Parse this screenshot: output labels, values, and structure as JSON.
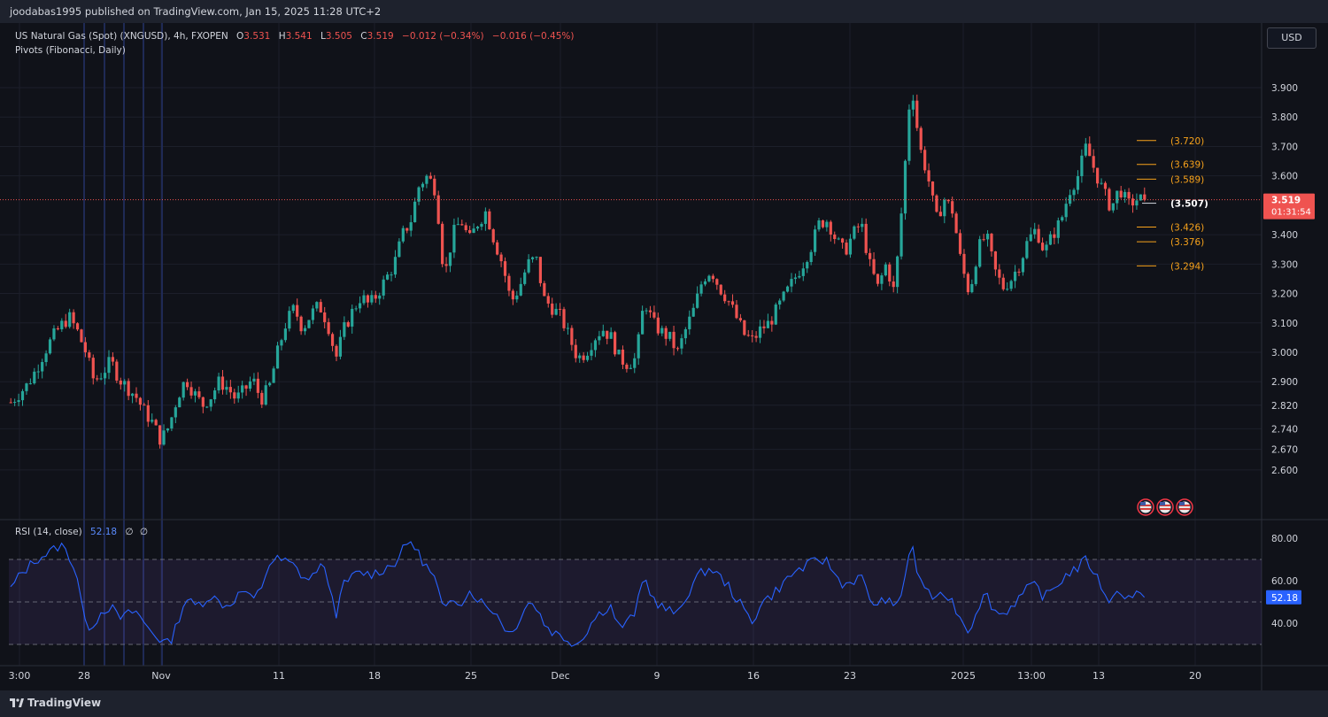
{
  "header": {
    "published_text": "joodabas1995 published on TradingView.com, Jan 15, 2025 11:28 UTC+2"
  },
  "legend": {
    "symbol": "US Natural Gas (Spot) (XNGUSD), 4h, FXOPEN",
    "o_label": "O",
    "o_value": "3.531",
    "h_label": "H",
    "h_value": "3.541",
    "l_label": "L",
    "l_value": "3.505",
    "c_label": "C",
    "c_value": "3.519",
    "change": "−0.012 (−0.34%)",
    "change2": "−0.016 (−0.45%)",
    "indicator": "Pivots (Fibonacci, Daily)"
  },
  "currency_button": "USD",
  "price_axis": {
    "ticks": [
      "3.900",
      "3.800",
      "3.700",
      "3.600",
      "3.400",
      "3.300",
      "3.200",
      "3.100",
      "3.000",
      "2.900",
      "2.820",
      "2.740",
      "2.670",
      "2.600"
    ],
    "last_price": "3.519",
    "countdown": "01:31:54"
  },
  "rsi": {
    "label": "RSI (14, close)",
    "value": "52.18",
    "extra1": "∅",
    "extra2": "∅",
    "ticks": [
      "80.00",
      "60.00",
      "40.00"
    ],
    "upper_band": 70,
    "lower_band": 30,
    "mid": 50
  },
  "time_axis": [
    "3:00",
    "28",
    "Nov",
    "11",
    "18",
    "25",
    "Dec",
    "9",
    "16",
    "23",
    "2025",
    "13:00",
    "13",
    "20"
  ],
  "footer": {
    "brand": "TradingView"
  },
  "colors": {
    "background": "#101219",
    "up": "#26a69a",
    "down": "#ef5350",
    "pivot": "#f7a21b",
    "rsi_line": "#2962ff",
    "rsi_fill": "#7e57c2"
  },
  "chart_data": {
    "type": "candlestick",
    "symbol": "XNGUSD",
    "timeframe": "4h",
    "y_range": [
      2.56,
      3.98
    ],
    "last_close": 3.519,
    "pivot_levels": [
      {
        "label": "(3.720)",
        "value": 3.72
      },
      {
        "label": "(3.639)",
        "value": 3.639
      },
      {
        "label": "(3.589)",
        "value": 3.589
      },
      {
        "label": "(3.507)",
        "value": 3.507
      },
      {
        "label": "(3.426)",
        "value": 3.426
      },
      {
        "label": "(3.376)",
        "value": 3.376
      },
      {
        "label": "(3.294)",
        "value": 3.294
      }
    ],
    "price_path": [
      2.83,
      2.86,
      2.89,
      2.94,
      3.0,
      3.05,
      3.09,
      3.12,
      3.07,
      3.0,
      2.9,
      2.93,
      2.97,
      2.91,
      2.88,
      2.85,
      2.8,
      2.76,
      2.7,
      2.75,
      2.85,
      2.91,
      2.86,
      2.82,
      2.85,
      2.9,
      2.88,
      2.84,
      2.87,
      2.91,
      2.84,
      2.88,
      3.0,
      3.1,
      3.15,
      3.08,
      3.13,
      3.16,
      3.1,
      2.98,
      3.08,
      3.14,
      3.19,
      3.16,
      3.2,
      3.25,
      3.3,
      3.4,
      3.45,
      3.57,
      3.6,
      3.55,
      3.25,
      3.4,
      3.45,
      3.38,
      3.44,
      3.48,
      3.38,
      3.3,
      3.17,
      3.22,
      3.3,
      3.32,
      3.18,
      3.15,
      3.12,
      3.05,
      2.98,
      3.0,
      3.05,
      3.08,
      3.05,
      2.98,
      2.96,
      2.98,
      3.18,
      3.1,
      3.07,
      3.05,
      3.0,
      3.08,
      3.15,
      3.25,
      3.28,
      3.22,
      3.18,
      3.12,
      3.06,
      3.04,
      3.08,
      3.1,
      3.15,
      3.2,
      3.25,
      3.3,
      3.36,
      3.44,
      3.45,
      3.38,
      3.34,
      3.4,
      3.44,
      3.3,
      3.22,
      3.3,
      3.2,
      3.53,
      3.93,
      3.7,
      3.6,
      3.45,
      3.52,
      3.48,
      3.3,
      3.2,
      3.35,
      3.4,
      3.28,
      3.22,
      3.25,
      3.3,
      3.38,
      3.42,
      3.34,
      3.4,
      3.45,
      3.55,
      3.6,
      3.7,
      3.62,
      3.55,
      3.49,
      3.56,
      3.5,
      3.52,
      3.519
    ],
    "rsi_path": [
      56,
      62,
      66,
      70,
      72,
      74,
      77,
      72,
      62,
      38,
      40,
      46,
      48,
      42,
      44,
      46,
      40,
      36,
      32,
      30,
      40,
      52,
      48,
      50,
      53,
      50,
      48,
      52,
      56,
      50,
      56,
      68,
      70,
      69,
      67,
      62,
      60,
      68,
      62,
      44,
      58,
      62,
      64,
      63,
      64,
      66,
      68,
      74,
      79,
      72,
      66,
      60,
      44,
      52,
      50,
      55,
      52,
      48,
      46,
      40,
      34,
      42,
      50,
      48,
      40,
      36,
      34,
      32,
      30,
      36,
      42,
      46,
      48,
      38,
      40,
      46,
      62,
      52,
      48,
      46,
      44,
      52,
      60,
      64,
      66,
      62,
      58,
      52,
      46,
      40,
      50,
      52,
      56,
      60,
      64,
      66,
      68,
      70,
      69,
      62,
      58,
      60,
      62,
      52,
      48,
      52,
      46,
      56,
      78,
      60,
      56,
      50,
      54,
      50,
      42,
      36,
      48,
      54,
      46,
      44,
      48,
      52,
      56,
      58,
      52,
      56,
      60,
      64,
      66,
      70,
      64,
      56,
      50,
      56,
      52,
      54,
      52.18
    ]
  }
}
